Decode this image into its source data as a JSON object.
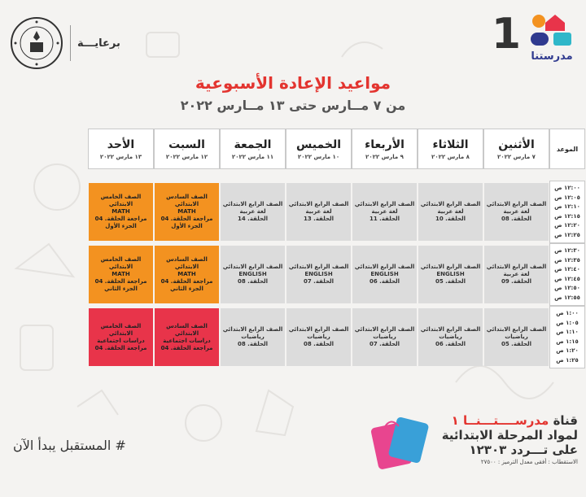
{
  "header": {
    "patron_label": "برعايـــة",
    "logo_number": "1",
    "logo_name": "مدرستنا"
  },
  "title": "مواعيد الإعادة الأسبوعية",
  "subtitle": "من ٧ مــارس حتى ١٣ مــارس ٢٠٢٢",
  "schedule": {
    "corner_label": "الموعد",
    "days": [
      {
        "name": "الأثنين",
        "date": "٧ مارس ٢٠٢٢"
      },
      {
        "name": "الثلاثاء",
        "date": "٨ مارس ٢٠٢٢"
      },
      {
        "name": "الأربعاء",
        "date": "٩ مارس ٢٠٢٢"
      },
      {
        "name": "الخميس",
        "date": "١٠ مارس ٢٠٢٢"
      },
      {
        "name": "الجمعة",
        "date": "١١ مارس ٢٠٢٢"
      },
      {
        "name": "السبت",
        "date": "١٢ مارس ٢٠٢٢"
      },
      {
        "name": "الأحد",
        "date": "١٣ مارس ٢٠٢٢"
      }
    ],
    "times": [
      [
        "١٢:٠٠ ص",
        "١٢:٠٥ ص",
        "١٢:١٠ ص",
        "١٢:١٥ ص",
        "١٢:٢٠ ص",
        "١٢:٢٥ ص"
      ],
      [
        "١٢:٣٠ ص",
        "١٢:٣٥ ص",
        "١٢:٤٠ ص",
        "١٢:٤٥ ص",
        "١٢:٥٠ ص",
        "١٢:٥٥ ص"
      ],
      [
        "١:٠٠ ص",
        "١:٠٥ ص",
        "١:١٠ ص",
        "١:١٥ ص",
        "١:٢٠ ص",
        "١:٢٥ ص"
      ]
    ],
    "rows": [
      [
        {
          "color": "gray",
          "lines": [
            "الصف الرابع الابتدائي",
            "لغة عربية",
            "الحلقة. 08"
          ]
        },
        {
          "color": "gray",
          "lines": [
            "الصف الرابع الابتدائي",
            "لغة عربية",
            "الحلقة. 10"
          ]
        },
        {
          "color": "gray",
          "lines": [
            "الصف الرابع الابتدائي",
            "لغة عربية",
            "الحلقة. 11"
          ]
        },
        {
          "color": "gray",
          "lines": [
            "الصف الرابع الابتدائي",
            "لغة عربية",
            "الحلقة. 13"
          ]
        },
        {
          "color": "gray",
          "lines": [
            "الصف الرابع الابتدائي",
            "لغة عربية",
            "الحلقة. 14"
          ]
        },
        {
          "color": "orange",
          "lines": [
            "الصف السادس الابتدائي",
            "MATH",
            "مراجعة الحلقة. 04",
            "الجزء الأول"
          ]
        },
        {
          "color": "orange",
          "lines": [
            "الصف الخامس الابتدائي",
            "MATH",
            "مراجعة الحلقة. 04",
            "الجزء الأول"
          ]
        }
      ],
      [
        {
          "color": "gray",
          "lines": [
            "الصف الرابع الابتدائي",
            "لغة عربية",
            "الحلقة. 09"
          ]
        },
        {
          "color": "gray",
          "lines": [
            "الصف الرابع الابتدائي",
            "ENGLISH",
            "الحلقة. 05"
          ]
        },
        {
          "color": "gray",
          "lines": [
            "الصف الرابع الابتدائي",
            "ENGLISH",
            "الحلقة. 06"
          ]
        },
        {
          "color": "gray",
          "lines": [
            "الصف الرابع الابتدائي",
            "ENGLISH",
            "الحلقة. 07"
          ]
        },
        {
          "color": "gray",
          "lines": [
            "الصف الرابع الابتدائي",
            "ENGLISH",
            "الحلقة. 08"
          ]
        },
        {
          "color": "orange",
          "lines": [
            "الصف السادس الابتدائي",
            "MATH",
            "مراجعة الحلقة. 04",
            "الجزء الثاني"
          ]
        },
        {
          "color": "orange",
          "lines": [
            "الصف الخامس الابتدائي",
            "MATH",
            "مراجعة الحلقة. 04",
            "الجزء الثاني"
          ]
        }
      ],
      [
        {
          "color": "gray",
          "lines": [
            "الصف الرابع الابتدائي",
            "رياضيات",
            "الحلقة. 05"
          ]
        },
        {
          "color": "gray",
          "lines": [
            "الصف الرابع الابتدائي",
            "رياضيات",
            "الحلقة. 06"
          ]
        },
        {
          "color": "gray",
          "lines": [
            "الصف الرابع الابتدائي",
            "رياضيات",
            "الحلقة. 07"
          ]
        },
        {
          "color": "gray",
          "lines": [
            "الصف الرابع الابتدائي",
            "رياضيات",
            "الحلقة. 08"
          ]
        },
        {
          "color": "gray",
          "lines": [
            "الصف الرابع الابتدائي",
            "رياضيات",
            "الحلقة. 08"
          ]
        },
        {
          "color": "red",
          "lines": [
            "الصف السادس الابتدائي",
            "دراسات اجتماعية",
            "مراجعة الحلقة. 04"
          ]
        },
        {
          "color": "red",
          "lines": [
            "الصف الخامس الابتدائي",
            "دراسات اجتماعية",
            "مراجعة الحلقة. 04"
          ]
        }
      ]
    ]
  },
  "footer": {
    "slogan": "# المستقبل يبدأ الآن",
    "channel_prefix": "قناة",
    "channel_name": "مدرســــتـــنــا ١",
    "subjects_line": "لمواد المرحلة الابتدائية",
    "frequency_line": "على تـــردد ١٢٣٠٣",
    "polarization": "الاستقطاب : أفقى معدل الترميز : ٢٧٥٠٠"
  },
  "colors": {
    "title_red": "#e3342f",
    "orange": "#f39220",
    "red": "#e8344a",
    "gray": "#dcdcdc",
    "logo_blue": "#2f3a8f"
  }
}
